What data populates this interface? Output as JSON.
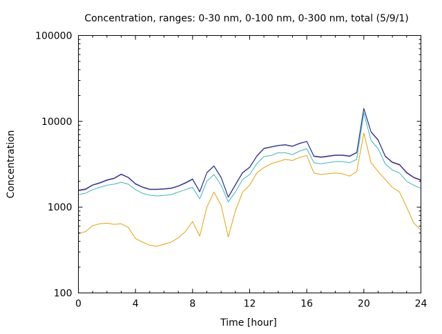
{
  "chart_data": {
    "type": "line",
    "title": "Concentration, ranges: 0-30 nm, 0-100 nm, 0-300 nm, total (5/9/1)",
    "xlabel": "Time [hour]",
    "ylabel": "Concentration",
    "xlim": [
      0,
      24
    ],
    "ylim": [
      100,
      100000
    ],
    "yscale": "log",
    "grid": false,
    "legend": "none",
    "x_ticks": [
      0,
      4,
      8,
      12,
      16,
      20,
      24
    ],
    "x_tick_labels": [
      "0",
      "4",
      "8",
      "12",
      "16",
      "20",
      "24"
    ],
    "y_ticks": [
      100,
      1000,
      10000,
      100000
    ],
    "y_tick_labels": [
      "100",
      "1000",
      "10000",
      "100000"
    ],
    "x": [
      0,
      0.5,
      1,
      1.5,
      2,
      2.5,
      3,
      3.5,
      4,
      4.5,
      5,
      5.5,
      6,
      6.5,
      7,
      7.5,
      8,
      8.5,
      9,
      9.5,
      10,
      10.5,
      11,
      11.5,
      12,
      12.5,
      13,
      13.5,
      14,
      14.5,
      15,
      15.5,
      16,
      16.5,
      17,
      17.5,
      18,
      18.5,
      19,
      19.5,
      20,
      20.5,
      21,
      21.5,
      22,
      22.5,
      23,
      23.5,
      24
    ],
    "series": [
      {
        "color": "#e6a100",
        "values": [
          490,
          520,
          610,
          640,
          650,
          630,
          640,
          580,
          430,
          390,
          360,
          350,
          370,
          390,
          440,
          520,
          680,
          460,
          1000,
          1500,
          1050,
          450,
          900,
          1500,
          1800,
          2500,
          2900,
          3200,
          3400,
          3600,
          3500,
          3800,
          4000,
          2500,
          2400,
          2450,
          2500,
          2450,
          2300,
          2600,
          7300,
          3300,
          2600,
          2100,
          1700,
          1500,
          1000,
          650,
          540
        ]
      },
      {
        "color": "#35b7c6",
        "values": [
          1400,
          1450,
          1600,
          1700,
          1800,
          1850,
          1950,
          1850,
          1600,
          1450,
          1380,
          1350,
          1370,
          1400,
          1500,
          1600,
          1700,
          1250,
          2000,
          2400,
          1800,
          1150,
          1500,
          2100,
          2400,
          3200,
          3900,
          4000,
          4300,
          4300,
          4100,
          4500,
          4800,
          3300,
          3200,
          3300,
          3400,
          3400,
          3300,
          3600,
          12500,
          6000,
          4800,
          3200,
          2700,
          2500,
          2000,
          1800,
          1650
        ]
      },
      {
        "color": "#6f3b97",
        "values": [
          1550,
          1600,
          1800,
          1900,
          2050,
          2150,
          2400,
          2200,
          1850,
          1700,
          1600,
          1600,
          1620,
          1650,
          1750,
          1900,
          2100,
          1500,
          2500,
          3000,
          2200,
          1300,
          1800,
          2500,
          2900,
          3900,
          4800,
          5000,
          5200,
          5300,
          5100,
          5500,
          5800,
          3900,
          3800,
          3900,
          4000,
          4000,
          3900,
          4300,
          14000,
          7500,
          6000,
          3900,
          3300,
          3100,
          2500,
          2200,
          2050
        ]
      },
      {
        "color": "#1f3a8f",
        "values": [
          1580,
          1630,
          1820,
          1930,
          2080,
          2180,
          2430,
          2230,
          1880,
          1720,
          1620,
          1620,
          1640,
          1670,
          1770,
          1930,
          2130,
          1520,
          2530,
          3030,
          2230,
          1320,
          1830,
          2530,
          2930,
          3950,
          4850,
          5050,
          5250,
          5350,
          5150,
          5550,
          5850,
          3950,
          3850,
          3950,
          4050,
          4050,
          3950,
          4350,
          14200,
          7600,
          6100,
          3950,
          3350,
          3150,
          2550,
          2230,
          2080
        ]
      }
    ]
  }
}
